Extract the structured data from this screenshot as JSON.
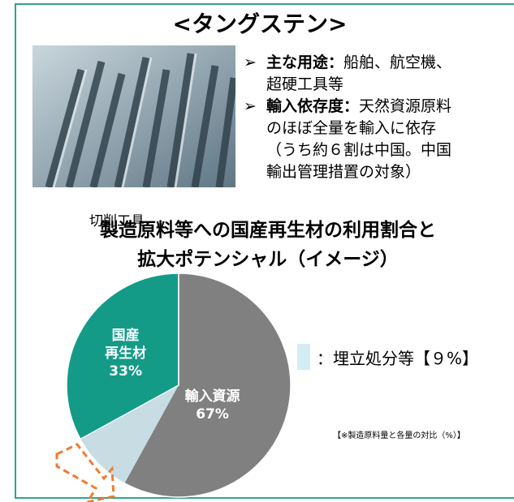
{
  "header": {
    "title": "<タングステン>"
  },
  "image_caption": "切削工具",
  "bullets": [
    {
      "term": "主な用途：",
      "text": "船舶、航空機、\n超硬工具等"
    },
    {
      "term": "輸入依存度：",
      "text": "天然資源原料\nのほぼ全量を輸入に依存\n（うち約６割は中国。中国\n輸出管理措置の対象）"
    }
  ],
  "chart_data": {
    "type": "pie",
    "title": "製造原料等への国産再生材の利用割合と\n拡大ポテンシャル（イメージ）",
    "categories": [
      "国産\n再生材",
      "輸入資源"
    ],
    "values": [
      33,
      67
    ],
    "value_labels": [
      "33%",
      "67%"
    ],
    "colors": [
      "#139b88",
      "#808080"
    ],
    "overlay": {
      "label": "：埋立処分等【９%】",
      "value": 9,
      "color": "#d4edf4"
    },
    "note": "【※製造原料量と各量の対比（%）】"
  }
}
